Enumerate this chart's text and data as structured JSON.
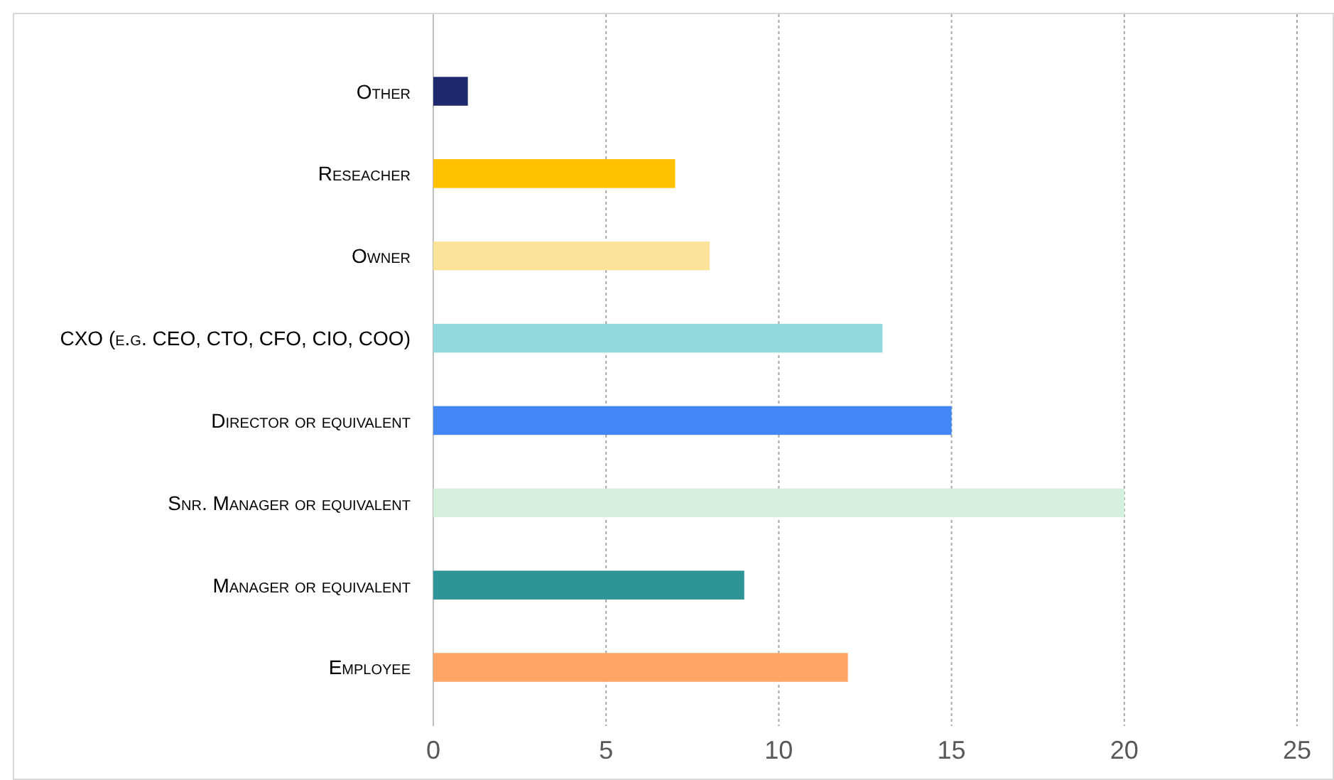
{
  "chart_data": {
    "type": "bar",
    "orientation": "horizontal",
    "categories": [
      "Other",
      "Reseacher ",
      "Owner",
      "CXO (e.g. CEO, CTO, CFO, CIO, COO)",
      "Director or equivalent",
      "Snr. Manager or equivalent",
      "Manager or equivalent",
      "Employee"
    ],
    "values": [
      1,
      7,
      8,
      13,
      15,
      20,
      9,
      12
    ],
    "colors": [
      "#1f2a6e",
      "#ffc000",
      "#fde39a",
      "#93d8dc",
      "#4287f5",
      "#d5f0dc",
      "#2e9497",
      "#ffa566"
    ],
    "xlim": [
      0,
      25
    ],
    "xticks": [
      0,
      5,
      10,
      15,
      20,
      25
    ],
    "grid": "x"
  }
}
